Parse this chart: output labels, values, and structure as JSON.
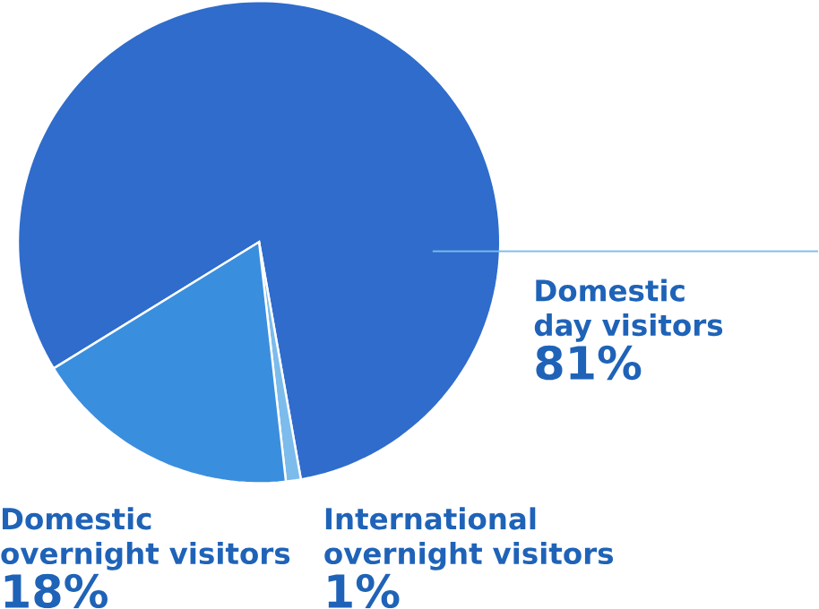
{
  "chart_data": {
    "type": "pie",
    "categories": [
      "Domestic day visitors",
      "International overnight visitors",
      "Domestic overnight visitors"
    ],
    "values": [
      81,
      1,
      18
    ],
    "value_labels": [
      "81%",
      "1%",
      "18%"
    ],
    "colors": [
      "#2f6ccc",
      "#7cbcec",
      "#3a8ede"
    ]
  }
}
